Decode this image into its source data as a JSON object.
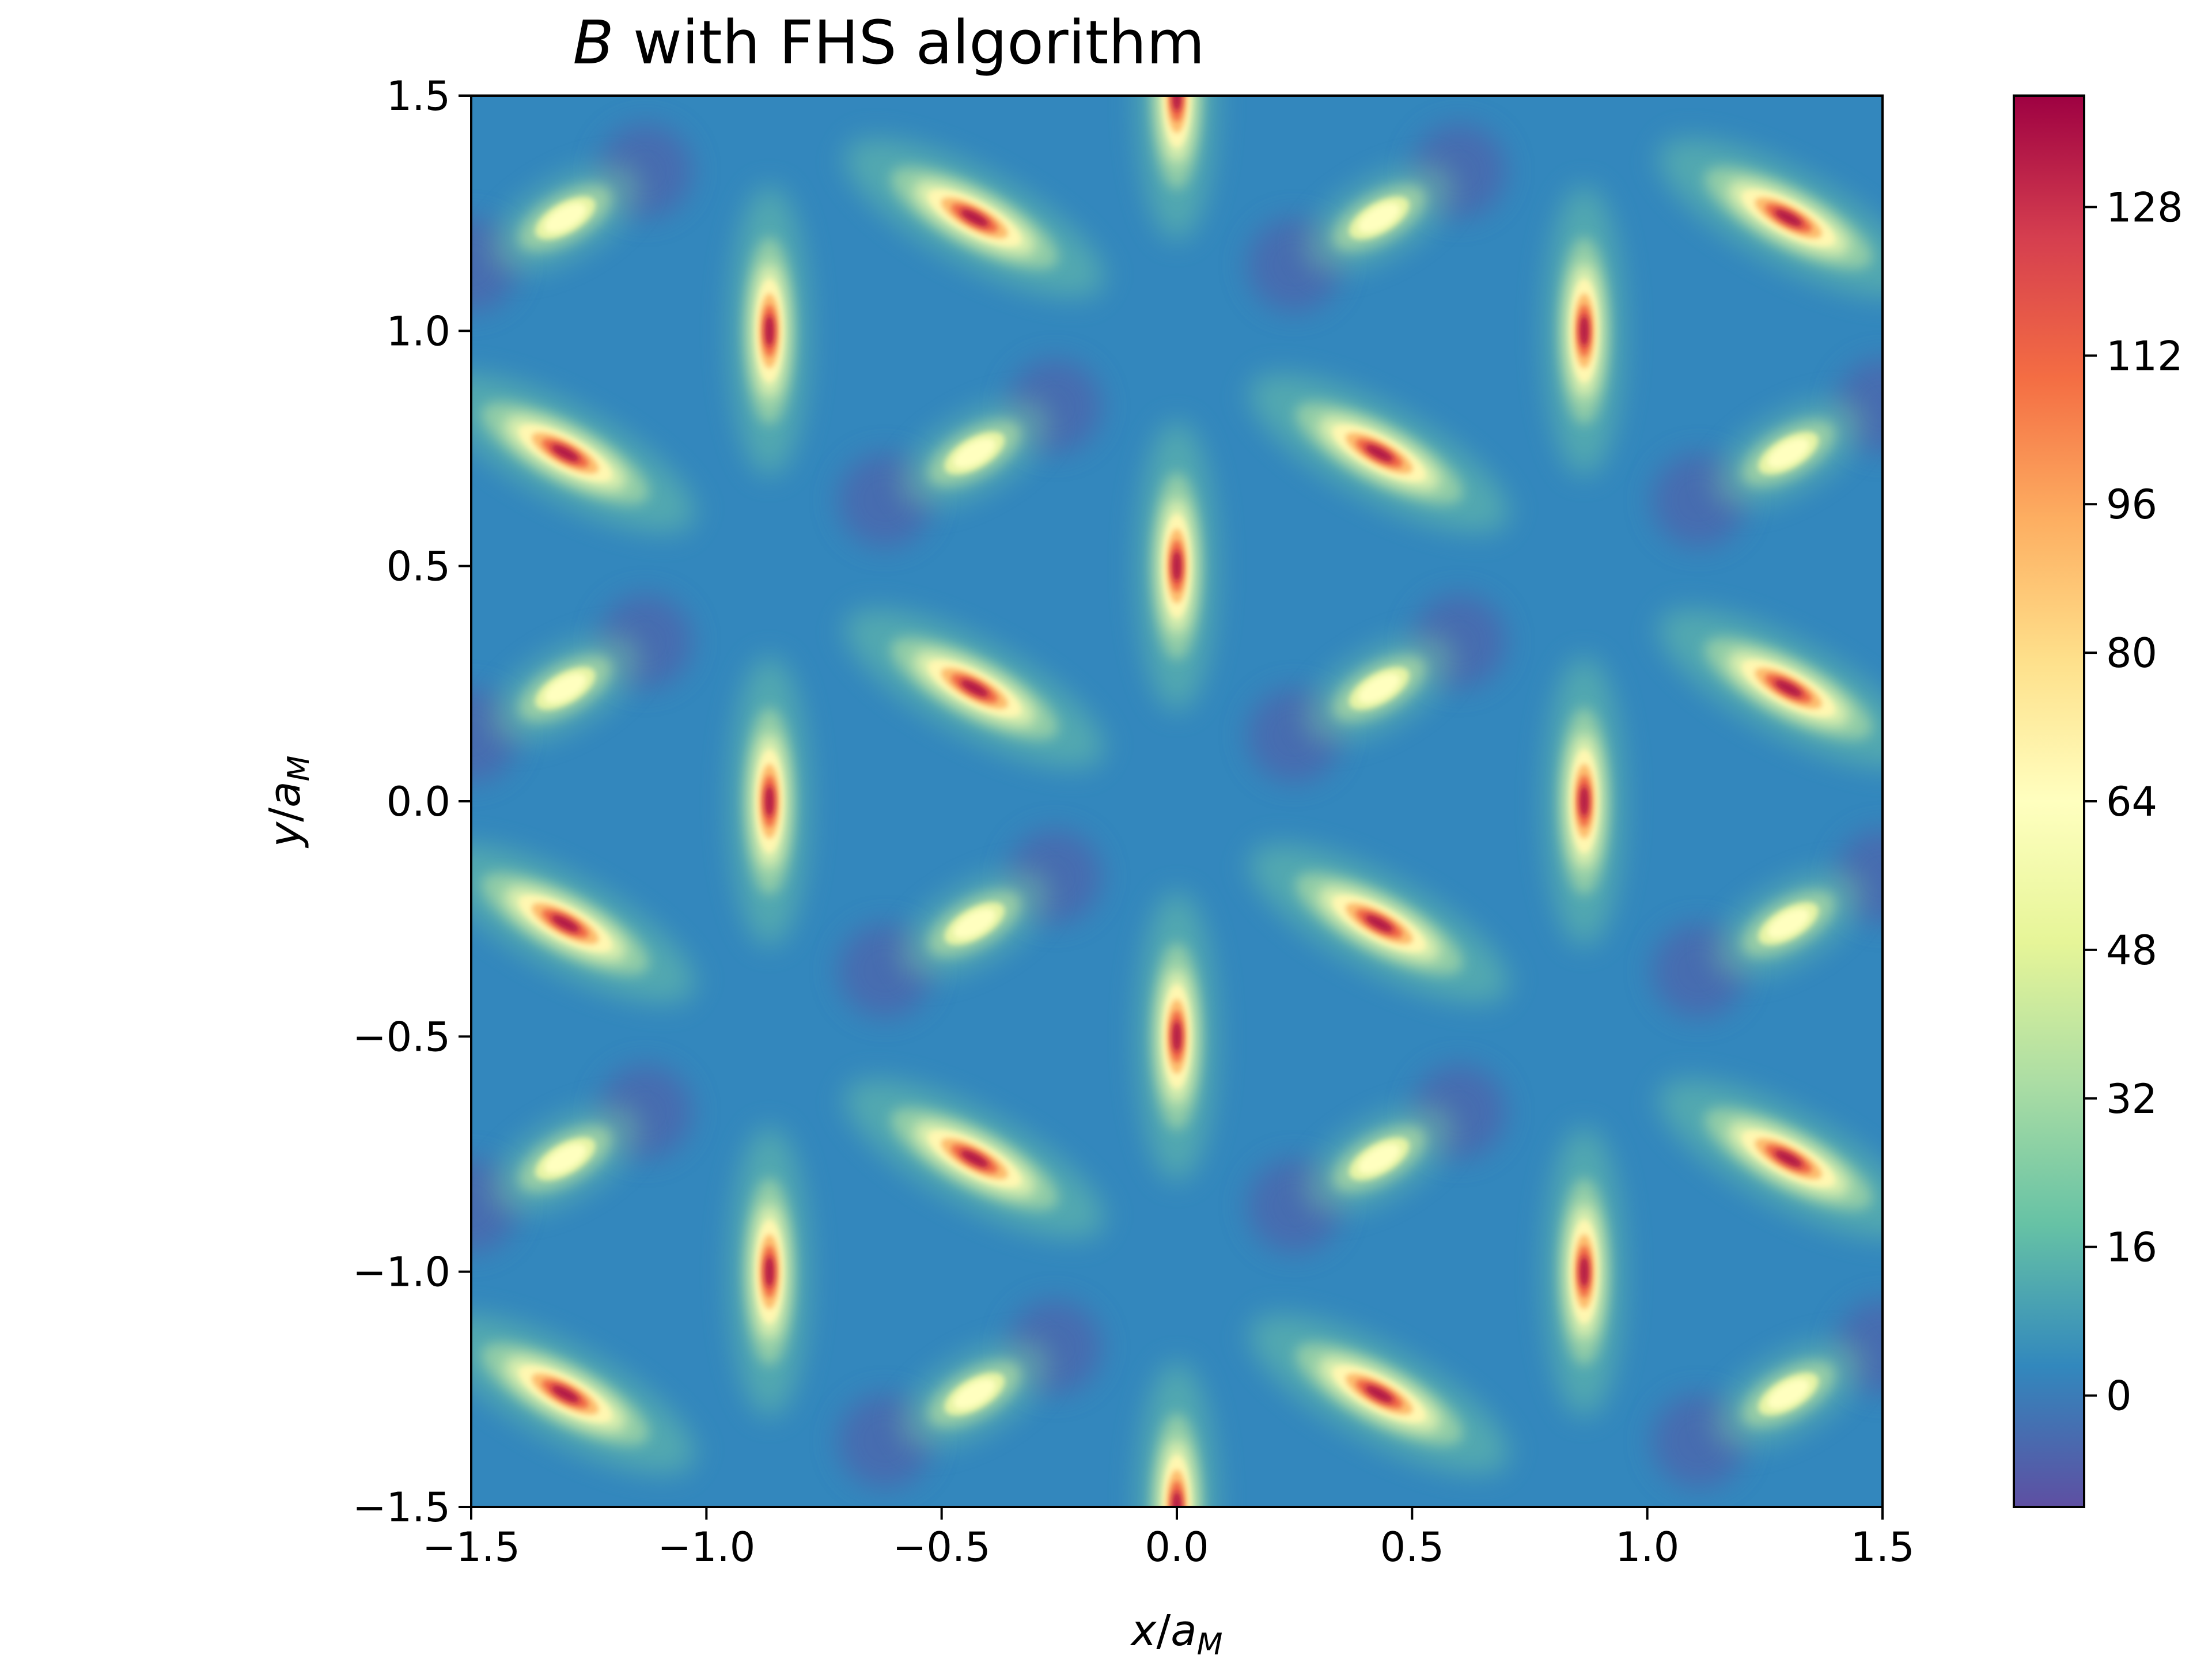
{
  "chart_data": {
    "type": "heatmap",
    "title": {
      "symbol": "B",
      "rest": " with FHS algorithm"
    },
    "xlabel": {
      "var": "x",
      "slash": "/",
      "a": "a",
      "sub": "M"
    },
    "ylabel": {
      "var": "y",
      "slash": "/",
      "a": "a",
      "sub": "M"
    },
    "xlim": [
      -1.5,
      1.5
    ],
    "ylim": [
      -1.5,
      1.5
    ],
    "x_ticks": [
      -1.5,
      -1.0,
      -0.5,
      0.0,
      0.5,
      1.0,
      1.5
    ],
    "x_tick_labels": [
      "−1.5",
      "−1.0",
      "−0.5",
      "0.0",
      "0.5",
      "1.0",
      "1.5"
    ],
    "y_ticks": [
      -1.5,
      -1.0,
      -0.5,
      0.0,
      0.5,
      1.0,
      1.5
    ],
    "y_tick_labels": [
      "−1.5",
      "−1.0",
      "−0.5",
      "0.0",
      "0.5",
      "1.0",
      "1.5"
    ],
    "colorbar": {
      "range": [
        -12,
        140
      ],
      "ticks": [
        0,
        16,
        32,
        48,
        64,
        80,
        96,
        112,
        128
      ],
      "tick_labels": [
        "0",
        "16",
        "32",
        "48",
        "64",
        "80",
        "96",
        "112",
        "128"
      ],
      "colormap": "Spectral_r",
      "colormap_stops": [
        "#5e4fa2",
        "#3288bd",
        "#66c2a5",
        "#abdda4",
        "#e6f598",
        "#ffffbf",
        "#fee08b",
        "#fdae61",
        "#f46d43",
        "#d53e4f",
        "#9e0142"
      ]
    },
    "background_value": 3,
    "grid": false,
    "peaks": [
      {
        "x": 0.0,
        "y": 0.5,
        "value": 140,
        "shape": "vertical"
      },
      {
        "x": 0.0,
        "y": -0.5,
        "value": 140,
        "shape": "vertical"
      },
      {
        "x": 0.0,
        "y": 1.5,
        "value": 140,
        "shape": "vertical"
      },
      {
        "x": 0.0,
        "y": -1.5,
        "value": 140,
        "shape": "vertical"
      },
      {
        "x": -0.866,
        "y": 1.0,
        "value": 140,
        "shape": "vertical"
      },
      {
        "x": -0.866,
        "y": 0.0,
        "value": 140,
        "shape": "vertical"
      },
      {
        "x": -0.866,
        "y": -1.0,
        "value": 140,
        "shape": "vertical"
      },
      {
        "x": 0.866,
        "y": 1.0,
        "value": 140,
        "shape": "vertical"
      },
      {
        "x": 0.866,
        "y": 0.0,
        "value": 140,
        "shape": "vertical"
      },
      {
        "x": 0.866,
        "y": -1.0,
        "value": 140,
        "shape": "vertical"
      },
      {
        "x": -1.3,
        "y": 0.74,
        "value": 140,
        "shape": "diagonal"
      },
      {
        "x": -1.3,
        "y": -0.26,
        "value": 140,
        "shape": "diagonal"
      },
      {
        "x": -1.3,
        "y": -1.26,
        "value": 140,
        "shape": "diagonal"
      },
      {
        "x": -0.43,
        "y": 1.24,
        "value": 140,
        "shape": "diagonal"
      },
      {
        "x": -0.43,
        "y": 0.24,
        "value": 140,
        "shape": "diagonal"
      },
      {
        "x": -0.43,
        "y": -0.76,
        "value": 140,
        "shape": "diagonal"
      },
      {
        "x": 0.43,
        "y": 0.74,
        "value": 140,
        "shape": "diagonal"
      },
      {
        "x": 0.43,
        "y": -0.26,
        "value": 140,
        "shape": "diagonal"
      },
      {
        "x": 0.43,
        "y": -1.26,
        "value": 140,
        "shape": "diagonal"
      },
      {
        "x": 1.3,
        "y": 1.24,
        "value": 140,
        "shape": "diagonal"
      },
      {
        "x": 1.3,
        "y": 0.24,
        "value": 140,
        "shape": "diagonal"
      },
      {
        "x": 1.3,
        "y": -0.76,
        "value": 140,
        "shape": "diagonal"
      },
      {
        "x": -1.3,
        "y": 1.24,
        "value": 64,
        "shape": "small"
      },
      {
        "x": -1.3,
        "y": 0.24,
        "value": 64,
        "shape": "small"
      },
      {
        "x": -1.3,
        "y": -0.76,
        "value": 64,
        "shape": "small"
      },
      {
        "x": -0.43,
        "y": 0.74,
        "value": 64,
        "shape": "small"
      },
      {
        "x": -0.43,
        "y": -0.26,
        "value": 64,
        "shape": "small"
      },
      {
        "x": -0.43,
        "y": -1.26,
        "value": 64,
        "shape": "small"
      },
      {
        "x": 0.43,
        "y": 1.24,
        "value": 64,
        "shape": "small"
      },
      {
        "x": 0.43,
        "y": 0.24,
        "value": 64,
        "shape": "small"
      },
      {
        "x": 0.43,
        "y": -0.76,
        "value": 64,
        "shape": "small"
      },
      {
        "x": 1.3,
        "y": 0.74,
        "value": 64,
        "shape": "small"
      },
      {
        "x": 1.3,
        "y": -0.26,
        "value": 64,
        "shape": "small"
      },
      {
        "x": 1.3,
        "y": -1.26,
        "value": 64,
        "shape": "small"
      }
    ],
    "minima": [
      {
        "x": -1.13,
        "y": 1.34,
        "value": -10
      },
      {
        "x": -1.13,
        "y": 0.34,
        "value": -10
      },
      {
        "x": -1.13,
        "y": -0.66,
        "value": -10
      },
      {
        "x": -0.62,
        "y": 0.64,
        "value": -10
      },
      {
        "x": -0.62,
        "y": -0.36,
        "value": -10
      },
      {
        "x": -0.62,
        "y": -1.36,
        "value": -10
      },
      {
        "x": -0.26,
        "y": 0.84,
        "value": -10
      },
      {
        "x": -0.26,
        "y": -0.16,
        "value": -10
      },
      {
        "x": -0.26,
        "y": -1.16,
        "value": -10
      },
      {
        "x": 0.25,
        "y": 1.14,
        "value": -10
      },
      {
        "x": 0.25,
        "y": 0.14,
        "value": -10
      },
      {
        "x": 0.25,
        "y": -0.86,
        "value": -10
      },
      {
        "x": 0.6,
        "y": 1.34,
        "value": -10
      },
      {
        "x": 0.6,
        "y": 0.34,
        "value": -10
      },
      {
        "x": 0.6,
        "y": -0.66,
        "value": -10
      },
      {
        "x": 1.11,
        "y": 0.64,
        "value": -10
      },
      {
        "x": 1.11,
        "y": -0.36,
        "value": -10
      },
      {
        "x": 1.11,
        "y": -1.36,
        "value": -10
      },
      {
        "x": -1.5,
        "y": 1.14,
        "value": -10
      },
      {
        "x": -1.5,
        "y": 0.14,
        "value": -10
      },
      {
        "x": -1.5,
        "y": -0.86,
        "value": -10
      },
      {
        "x": 1.5,
        "y": 0.84,
        "value": -10
      },
      {
        "x": 1.5,
        "y": -0.16,
        "value": -10
      },
      {
        "x": 1.5,
        "y": -1.16,
        "value": -10
      }
    ]
  }
}
